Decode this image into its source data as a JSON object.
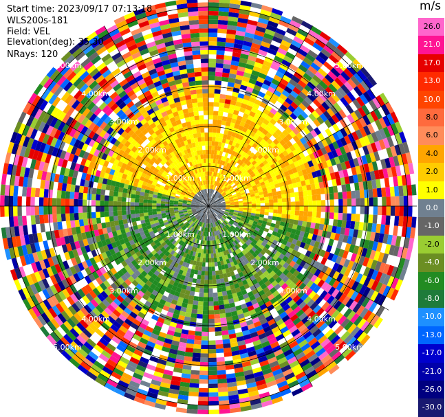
{
  "header": {
    "start_time": "Start time: 2023/09/17 07:13:18",
    "instrument": "WLS200s-181",
    "field": "Field: VEL",
    "elevation": "Elevation(deg): 35.30",
    "nrays": "NRays: 120"
  },
  "range_rings": {
    "labels": [
      "1.00km",
      "2.00km",
      "3.00km",
      "4.00km",
      "5.00km"
    ]
  },
  "colorbar": {
    "unit": "m/s",
    "ticks": [
      "26.0",
      "21.0",
      "17.0",
      "13.0",
      "10.0",
      "8.0",
      "6.0",
      "4.0",
      "2.0",
      "1.0",
      "0.0",
      "-1.0",
      "-2.0",
      "-4.0",
      "-6.0",
      "-8.0",
      "-10.0",
      "-13.0",
      "-17.0",
      "-21.0",
      "-26.0",
      "-30.0"
    ],
    "colors": [
      "#ff66cc",
      "#ff1493",
      "#e60000",
      "#ff2a00",
      "#ff4500",
      "#ff6a3d",
      "#ff8c5a",
      "#ffa500",
      "#ffcc00",
      "#ffff00",
      "#708090",
      "#666666",
      "#9acd32",
      "#6b8e23",
      "#228b22",
      "#1e7b3a",
      "#1e90ff",
      "#0066ff",
      "#0000cd",
      "#0000aa",
      "#000080",
      "#191970"
    ]
  },
  "field_pattern": {
    "positive_sector": "north",
    "negative_sector": "south",
    "noise_start_fraction": 0.55
  }
}
